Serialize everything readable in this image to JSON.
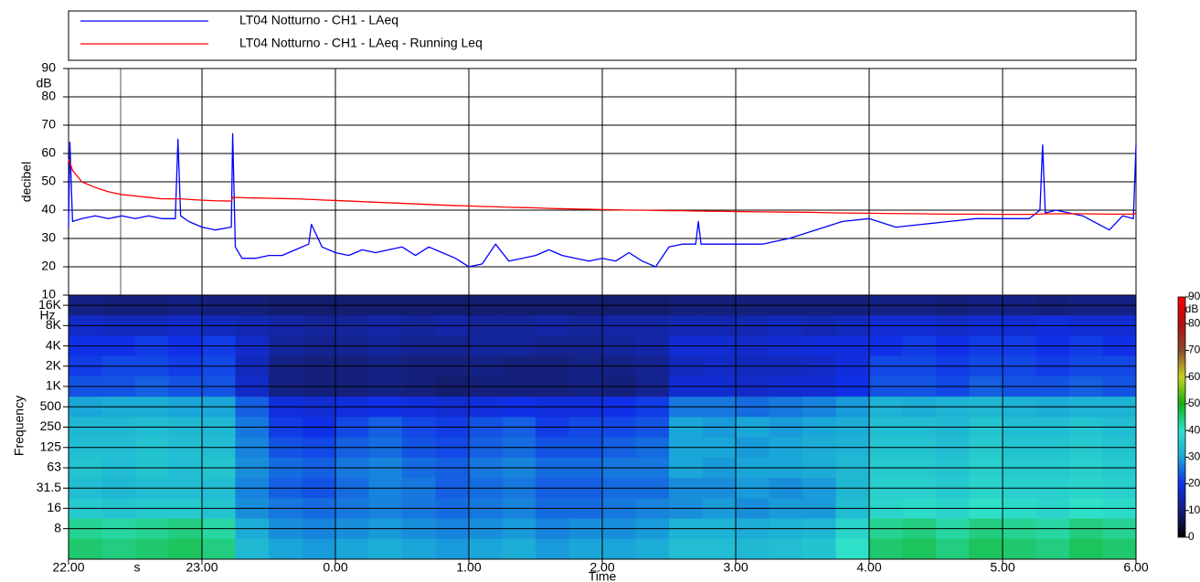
{
  "chart_data": [
    {
      "type": "line",
      "y_label": "decibel",
      "y_unit": "dB",
      "xlim": [
        22,
        30
      ],
      "ylim": [
        10,
        90
      ],
      "yticks": [
        10,
        20,
        30,
        40,
        50,
        60,
        70,
        80,
        90
      ],
      "grid": true,
      "legend": "top",
      "x": [
        22.0,
        22.01,
        22.03,
        22.1,
        22.2,
        22.3,
        22.4,
        22.5,
        22.6,
        22.7,
        22.8,
        22.82,
        22.84,
        22.9,
        23.0,
        23.1,
        23.22,
        23.23,
        23.25,
        23.3,
        23.4,
        23.5,
        23.6,
        23.7,
        23.8,
        23.82,
        23.9,
        24.0,
        24.1,
        24.2,
        24.3,
        24.4,
        24.5,
        24.6,
        24.7,
        24.8,
        24.9,
        25.0,
        25.1,
        25.2,
        25.3,
        25.4,
        25.5,
        25.6,
        25.7,
        25.8,
        25.9,
        26.0,
        26.1,
        26.2,
        26.3,
        26.4,
        26.5,
        26.6,
        26.7,
        26.72,
        26.74,
        26.8,
        26.9,
        27.0,
        27.2,
        27.4,
        27.6,
        27.8,
        28.0,
        28.2,
        28.4,
        28.6,
        28.8,
        29.0,
        29.2,
        29.28,
        29.3,
        29.32,
        29.4,
        29.6,
        29.8,
        29.9,
        29.98,
        30.0
      ],
      "series": [
        {
          "name": "LT04 Notturno - CH1 - LAeq",
          "color": "#0000ff",
          "values": [
            34,
            64,
            36,
            37,
            38,
            37,
            38,
            37,
            38,
            37,
            37,
            65,
            38,
            36,
            34,
            33,
            34,
            67,
            27,
            23,
            23,
            24,
            24,
            26,
            28,
            35,
            27,
            25,
            24,
            26,
            25,
            26,
            27,
            24,
            27,
            25,
            23,
            20,
            21,
            28,
            22,
            23,
            24,
            26,
            24,
            23,
            22,
            23,
            22,
            25,
            22,
            20,
            27,
            28,
            28,
            36,
            28,
            28,
            28,
            28,
            28,
            30,
            33,
            36,
            37,
            34,
            35,
            36,
            37,
            37,
            37,
            40,
            63,
            39,
            40,
            38,
            33,
            38,
            37,
            63
          ]
        },
        {
          "name": "LT04 Notturno - CH1 - LAeq - Running Leq",
          "color": "#ff0000",
          "values": [
            58,
            57,
            54,
            50,
            48,
            46.5,
            45.5,
            45,
            44.5,
            44,
            44,
            44,
            44,
            43.8,
            43.5,
            43.3,
            43.2,
            44.5,
            44.5,
            44.4,
            44.3,
            44.2,
            44.1,
            44,
            43.8,
            43.8,
            43.6,
            43.4,
            43.2,
            43,
            42.8,
            42.6,
            42.4,
            42.2,
            42,
            41.8,
            41.6,
            41.5,
            41.3,
            41.2,
            41,
            40.9,
            40.8,
            40.6,
            40.5,
            40.4,
            40.3,
            40.2,
            40.1,
            40,
            40,
            39.9,
            39.8,
            39.8,
            39.7,
            39.7,
            39.7,
            39.6,
            39.6,
            39.5,
            39.4,
            39.3,
            39.2,
            39,
            38.9,
            38.8,
            38.7,
            38.6,
            38.6,
            38.5,
            38.5,
            38.6,
            38.7,
            38.7,
            38.7,
            38.7,
            38.6,
            38.6,
            38.6,
            39
          ]
        }
      ]
    },
    {
      "type": "spectrogram",
      "x_label": "Time",
      "x_unit": "s",
      "y_label": "Frequency",
      "y_unit": "Hz",
      "xlim": [
        22,
        30
      ],
      "xticks": [
        {
          "value": 22,
          "label": "22.00"
        },
        {
          "value": 23,
          "label": "23.00"
        },
        {
          "value": 24,
          "label": "0.00"
        },
        {
          "value": 25,
          "label": "1.00"
        },
        {
          "value": 26,
          "label": "2.00"
        },
        {
          "value": 27,
          "label": "3.00"
        },
        {
          "value": 28,
          "label": "4.00"
        },
        {
          "value": 29,
          "label": "5.00"
        },
        {
          "value": 30,
          "label": "6.00"
        }
      ],
      "categories": [
        "16K",
        "8K",
        "4K",
        "2K",
        "1K",
        "500",
        "250",
        "125",
        "63",
        "31.5",
        "16",
        "8",
        null
      ],
      "bins": [
        22,
        22.25,
        22.5,
        22.75,
        23,
        23.25,
        23.5,
        23.75,
        24,
        24.25,
        24.5,
        24.75,
        25,
        25.25,
        25.5,
        25.75,
        26,
        26.25,
        26.5,
        26.75,
        27,
        27.25,
        27.5,
        27.75,
        28,
        28.25,
        28.5,
        28.75,
        29,
        29.25,
        29.5,
        29.75,
        30
      ],
      "zlim": [
        0,
        90
      ],
      "zticks": [
        0,
        10,
        20,
        30,
        40,
        50,
        60,
        70,
        80,
        90
      ],
      "z_unit": "dB",
      "colormap": [
        "#000000",
        "#15207a",
        "#1030e8",
        "#1aa6d8",
        "#2ee0c8",
        "#12b012",
        "#c8d020",
        "#8a4a2a",
        "#b01010",
        "#ff0000"
      ],
      "matrix": [
        [
          11,
          10,
          10,
          11,
          10,
          10,
          9,
          9,
          9,
          9,
          9,
          9,
          9,
          9,
          9,
          9,
          9,
          9,
          10,
          10,
          10,
          10,
          10,
          10,
          11,
          11,
          10,
          11,
          11,
          10,
          11,
          11
        ],
        [
          17,
          16,
          16,
          17,
          16,
          15,
          14,
          13,
          13,
          14,
          13,
          14,
          13,
          13,
          14,
          13,
          14,
          14,
          15,
          15,
          15,
          16,
          15,
          16,
          18,
          18,
          17,
          18,
          18,
          19,
          18,
          18
        ],
        [
          20,
          20,
          21,
          20,
          21,
          17,
          13,
          12,
          12,
          13,
          12,
          12,
          13,
          13,
          12,
          12,
          13,
          14,
          18,
          18,
          17,
          18,
          19,
          19,
          20,
          21,
          20,
          21,
          21,
          20,
          21,
          20
        ],
        [
          21,
          22,
          22,
          21,
          22,
          16,
          11,
          10,
          10,
          11,
          10,
          10,
          11,
          10,
          10,
          11,
          11,
          12,
          16,
          17,
          16,
          16,
          17,
          19,
          22,
          22,
          21,
          22,
          22,
          21,
          22,
          22
        ],
        [
          23,
          23,
          24,
          23,
          23,
          17,
          11,
          10,
          10,
          11,
          10,
          9,
          10,
          10,
          10,
          11,
          10,
          12,
          18,
          18,
          17,
          18,
          18,
          20,
          23,
          23,
          22,
          24,
          23,
          23,
          24,
          23
        ],
        [
          30,
          31,
          31,
          30,
          30,
          24,
          19,
          18,
          19,
          20,
          19,
          18,
          19,
          20,
          19,
          19,
          20,
          21,
          26,
          26,
          25,
          26,
          27,
          29,
          32,
          31,
          32,
          33,
          32,
          31,
          32,
          32
        ],
        [
          33,
          33,
          34,
          33,
          33,
          26,
          21,
          20,
          22,
          24,
          22,
          21,
          23,
          24,
          21,
          22,
          22,
          23,
          30,
          29,
          30,
          29,
          30,
          31,
          34,
          34,
          33,
          35,
          34,
          34,
          35,
          34
        ],
        [
          34,
          34,
          35,
          34,
          34,
          27,
          23,
          22,
          24,
          25,
          23,
          22,
          24,
          25,
          23,
          23,
          24,
          25,
          30,
          30,
          29,
          30,
          31,
          32,
          35,
          35,
          34,
          36,
          35,
          35,
          36,
          35
        ],
        [
          35,
          34,
          35,
          34,
          35,
          28,
          25,
          24,
          26,
          27,
          25,
          24,
          26,
          27,
          25,
          25,
          26,
          26,
          30,
          29,
          30,
          30,
          31,
          33,
          36,
          36,
          35,
          37,
          36,
          36,
          37,
          36
        ],
        [
          34,
          33,
          34,
          34,
          34,
          27,
          24,
          23,
          25,
          27,
          26,
          24,
          25,
          26,
          24,
          24,
          25,
          25,
          28,
          28,
          29,
          28,
          29,
          33,
          37,
          37,
          36,
          38,
          37,
          37,
          38,
          37
        ],
        [
          36,
          35,
          36,
          36,
          35,
          28,
          26,
          25,
          26,
          27,
          26,
          25,
          26,
          27,
          25,
          25,
          26,
          27,
          28,
          29,
          28,
          29,
          29,
          34,
          38,
          39,
          38,
          40,
          39,
          38,
          40,
          39
        ],
        [
          43,
          42,
          43,
          44,
          42,
          31,
          28,
          27,
          28,
          29,
          28,
          27,
          28,
          29,
          27,
          28,
          28,
          29,
          32,
          32,
          31,
          32,
          33,
          38,
          43,
          44,
          42,
          44,
          43,
          42,
          44,
          43
        ],
        [
          45,
          44,
          45,
          46,
          44,
          33,
          30,
          29,
          30,
          31,
          30,
          29,
          30,
          31,
          29,
          30,
          30,
          31,
          34,
          34,
          33,
          34,
          35,
          40,
          45,
          46,
          44,
          46,
          45,
          44,
          46,
          45
        ]
      ]
    }
  ]
}
